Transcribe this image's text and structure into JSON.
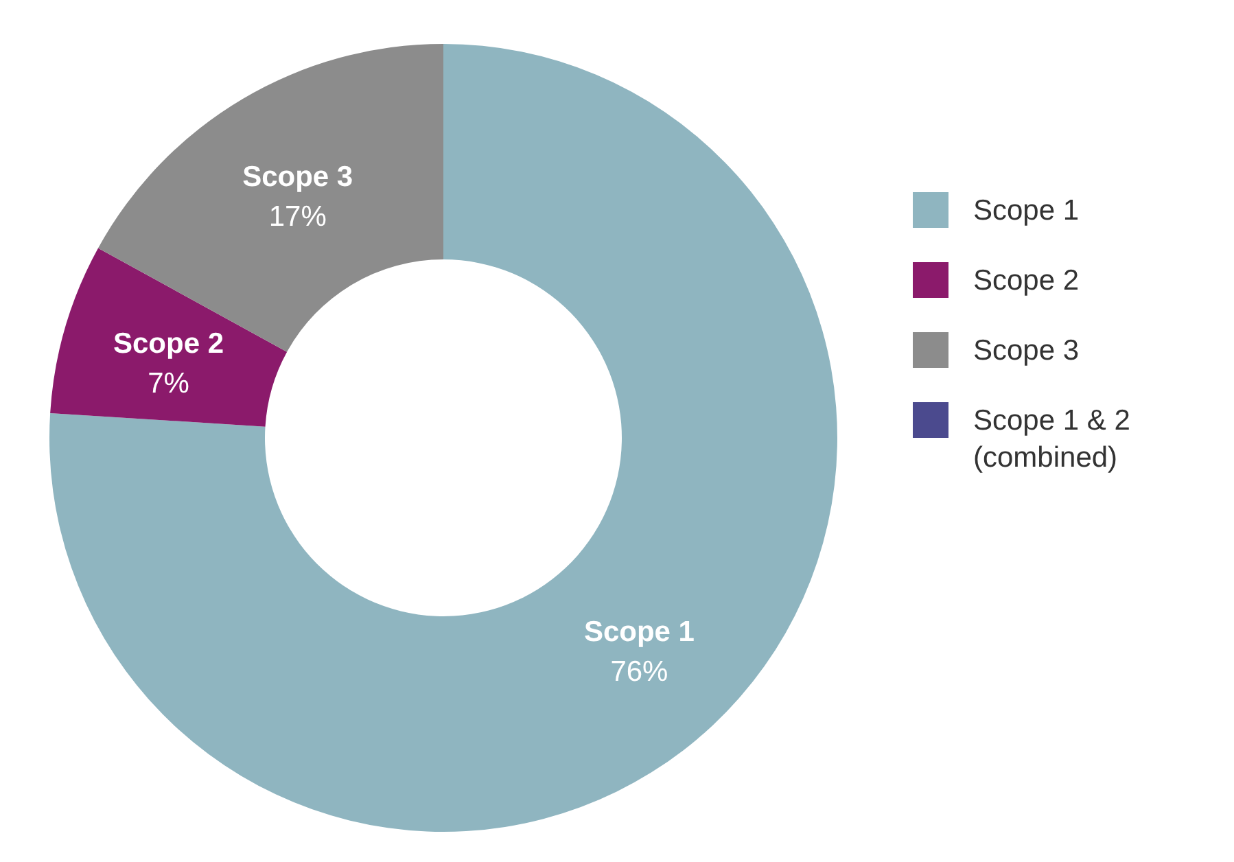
{
  "chart_data": {
    "type": "donut",
    "categories": [
      "Scope 1",
      "Scope 2",
      "Scope 3",
      "Scope 1 &  2 (combined)"
    ],
    "values": [
      76,
      7,
      17,
      0
    ],
    "colors": [
      "#8fb5c0",
      "#8b1a6b",
      "#8c8c8c",
      "#4b4a8e"
    ],
    "value_labels": [
      "76%",
      "7%",
      "17%",
      null
    ],
    "legend": "right"
  }
}
